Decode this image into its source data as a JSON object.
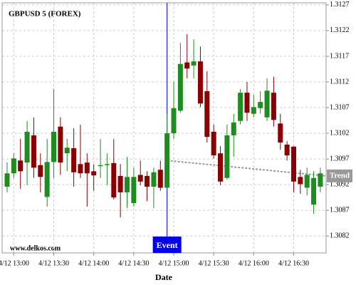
{
  "chart_data": {
    "type": "candlestick",
    "title": "GBPUSD 5 (FOREX)",
    "watermark": "www.delkos.com",
    "x_label": "Date",
    "categories": [
      null,
      "4/12 13:00",
      null,
      null,
      null,
      null,
      null,
      "4/12 13:30",
      null,
      null,
      null,
      null,
      null,
      "4/12 14:00",
      null,
      null,
      null,
      null,
      null,
      "4/12 14:30",
      null,
      null,
      null,
      null,
      null,
      "4/12 15:00",
      null,
      null,
      null,
      null,
      null,
      "4/12 15:30",
      null,
      null,
      null,
      null,
      null,
      "4/12 16:00",
      null,
      null,
      null,
      null,
      null,
      "4/12 16:30",
      null,
      null,
      null,
      null
    ],
    "open": [
      1.30916,
      1.30942,
      1.30967,
      1.30963,
      1.31016,
      1.30958,
      1.30896,
      1.30964,
      1.31033,
      1.30981,
      1.30991,
      1.3096,
      1.30963,
      1.30946,
      1.30956,
      1.30958,
      1.30962,
      1.30937,
      1.30905,
      1.30884,
      1.30939,
      1.30937,
      1.30916,
      1.30949,
      1.30914,
      1.3102,
      1.31064,
      1.31158,
      1.31152,
      1.3116,
      1.31102,
      1.31023,
      1.30981,
      1.30933,
      1.31016,
      1.31044,
      1.31099,
      1.31058,
      1.31069,
      1.31051,
      1.31099,
      1.31039,
      1.30998,
      1.30994,
      1.30935,
      1.30914,
      1.30881,
      1.30916
    ],
    "high": [
      1.30963,
      1.30981,
      1.31009,
      1.31044,
      1.31051,
      1.30981,
      1.31009,
      1.31106,
      1.31051,
      1.31009,
      1.3103,
      1.31037,
      1.30981,
      1.3096,
      1.31009,
      1.30981,
      1.31009,
      1.3096,
      1.30974,
      1.30953,
      1.30967,
      1.30946,
      1.30953,
      1.30967,
      1.31058,
      1.3112,
      1.31196,
      1.31213,
      1.31203,
      1.31189,
      1.31141,
      1.31037,
      1.30995,
      1.31037,
      1.31058,
      1.31106,
      1.3112,
      1.31095,
      1.31102,
      1.31127,
      1.3113,
      1.31058,
      1.31005,
      1.30995,
      1.30949,
      1.30953,
      1.30946,
      1.30953
    ],
    "low": [
      1.30905,
      1.30933,
      1.30912,
      1.30919,
      1.30933,
      1.30905,
      1.30877,
      1.30933,
      1.30939,
      1.30946,
      1.30916,
      1.30933,
      1.30877,
      1.30908,
      1.30933,
      1.30919,
      1.30891,
      1.30856,
      1.30874,
      1.30877,
      1.30919,
      1.30888,
      1.30874,
      1.30908,
      1.30914,
      1.31009,
      1.3106,
      1.31127,
      1.31127,
      1.31071,
      1.31002,
      1.30971,
      1.30919,
      1.3093,
      1.30974,
      1.31037,
      1.31044,
      1.31051,
      1.31058,
      1.31044,
      1.31033,
      1.30988,
      1.30967,
      1.30905,
      1.30902,
      1.30899,
      1.30863,
      1.30905
    ],
    "close": [
      1.30942,
      1.30971,
      1.30946,
      1.31023,
      1.30953,
      1.30935,
      1.30964,
      1.31023,
      1.30963,
      1.30992,
      1.30944,
      1.30942,
      1.30942,
      1.30938,
      1.30958,
      1.3096,
      1.30895,
      1.30905,
      1.30935,
      1.30935,
      1.30926,
      1.30916,
      1.30944,
      1.30914,
      1.3102,
      1.31069,
      1.31155,
      1.31146,
      1.3116,
      1.31078,
      1.31013,
      1.30977,
      1.30926,
      1.31016,
      1.31041,
      1.31099,
      1.3106,
      1.31071,
      1.31081,
      1.31103,
      1.31046,
      1.31002,
      1.30977,
      1.30926,
      1.30921,
      1.30939,
      1.30933,
      1.30942
    ],
    "up_color": "#1e8c1e",
    "down_color": "#8b0000",
    "ylim": [
      1.30787,
      1.31274
    ],
    "yticks": [
      1.3082,
      1.3087,
      1.3092,
      1.3097,
      1.3102,
      1.3107,
      1.3112,
      1.3117,
      1.3122,
      1.3127
    ],
    "grid": true,
    "event": {
      "label": "Event",
      "at": 24,
      "color": "#0000ee"
    },
    "trend": {
      "label": "Trend",
      "values": [
        1.30967,
        1.30937
      ],
      "color": "#999999"
    }
  }
}
